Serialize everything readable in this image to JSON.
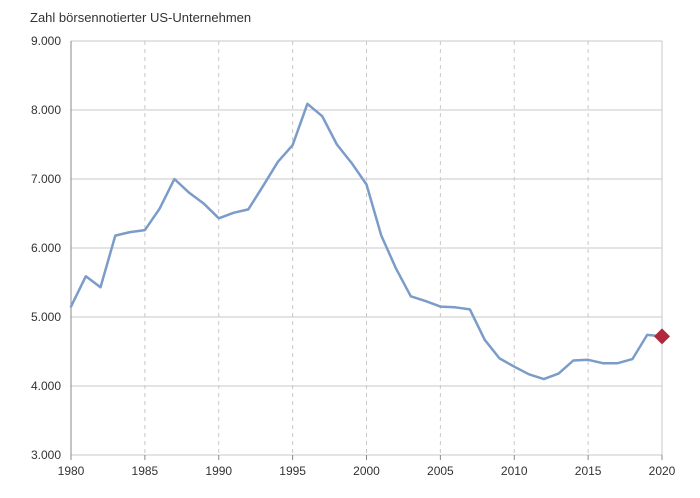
{
  "chart_data": {
    "type": "line",
    "title": "Zahl börsennotierter US-Unternehmen",
    "xlabel": "",
    "ylabel": "",
    "xlim": [
      1980,
      2020
    ],
    "ylim": [
      3000,
      9000
    ],
    "x_ticks": [
      1980,
      1985,
      1990,
      1995,
      2000,
      2005,
      2010,
      2015,
      2020
    ],
    "x_tick_labels": [
      "1980",
      "1985",
      "1990",
      "1995",
      "2000",
      "2005",
      "2010",
      "2015",
      "2020"
    ],
    "y_ticks": [
      3000,
      4000,
      5000,
      6000,
      7000,
      8000,
      9000
    ],
    "y_tick_labels": [
      "3.000",
      "4.000",
      "5.000",
      "6.000",
      "7.000",
      "8.000",
      "9.000"
    ],
    "grid": {
      "horizontal": "solid",
      "vertical": "dashed"
    },
    "series": [
      {
        "color": "#7b9cc9",
        "x": [
          1980,
          1981,
          1982,
          1983,
          1984,
          1985,
          1986,
          1987,
          1988,
          1989,
          1990,
          1991,
          1992,
          1993,
          1994,
          1995,
          1996,
          1997,
          1998,
          1999,
          2000,
          2001,
          2002,
          2003,
          2004,
          2005,
          2006,
          2007,
          2008,
          2009,
          2010,
          2011,
          2012,
          2013,
          2014,
          2015,
          2016,
          2017,
          2018,
          2019,
          2020
        ],
        "y": [
          5150,
          5590,
          5430,
          6180,
          6230,
          6260,
          6570,
          7000,
          6800,
          6640,
          6430,
          6510,
          6560,
          6900,
          7250,
          7490,
          8090,
          7910,
          7500,
          7230,
          6920,
          6180,
          5700,
          5300,
          5230,
          5150,
          5140,
          5110,
          4670,
          4400,
          4280,
          4170,
          4100,
          4180,
          4370,
          4380,
          4330,
          4330,
          4390,
          4740,
          4720
        ]
      }
    ],
    "highlight_point": {
      "x": 2020,
      "y": 4720,
      "marker": "diamond",
      "color": "#b0283c"
    }
  }
}
